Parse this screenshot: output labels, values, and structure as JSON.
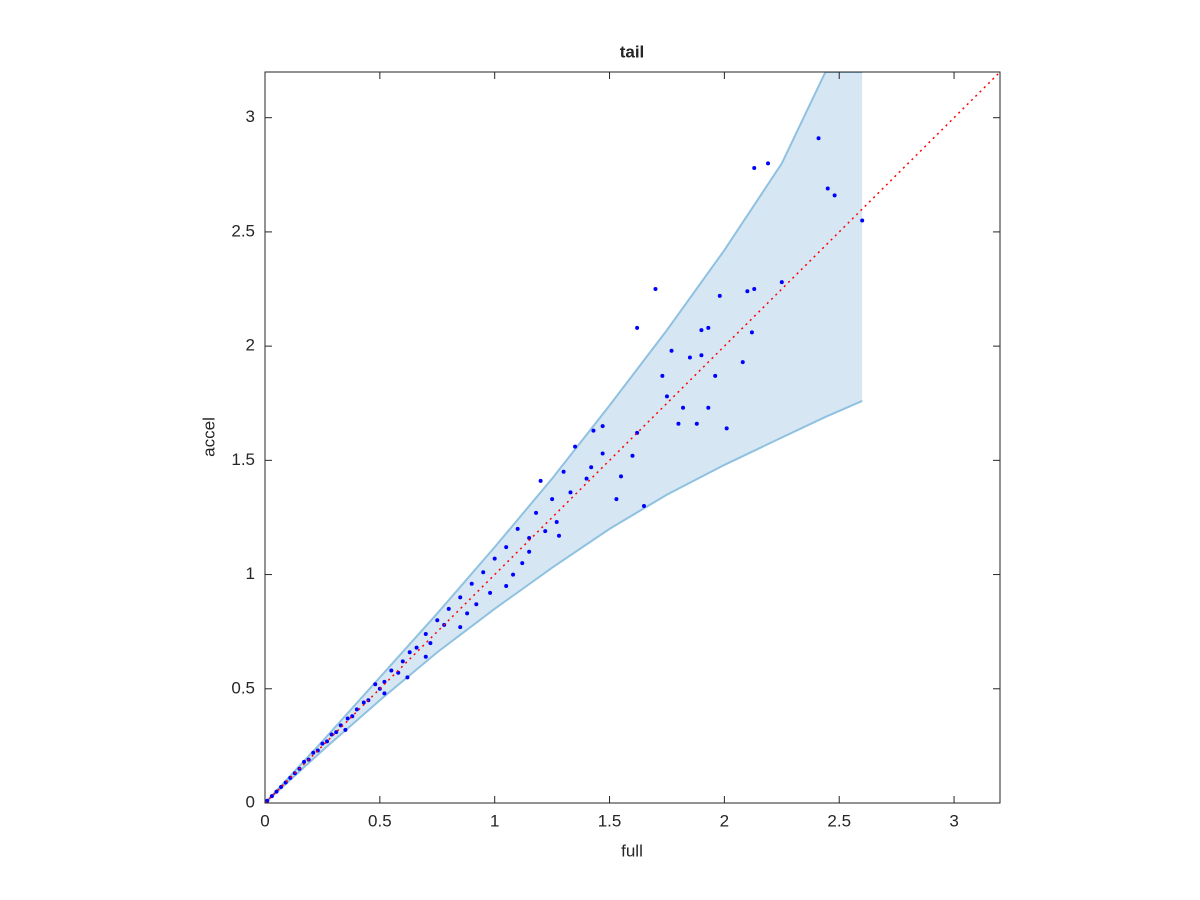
{
  "chart_data": {
    "type": "scatter",
    "title": "tail",
    "xlabel": "full",
    "ylabel": "accel",
    "xlim": [
      0,
      3.2
    ],
    "ylim": [
      0,
      3.2
    ],
    "xticks": [
      0,
      0.5,
      1,
      1.5,
      2,
      2.5,
      3
    ],
    "yticks": [
      0,
      0.5,
      1,
      1.5,
      2,
      2.5,
      3
    ],
    "grid": false,
    "color": "#0000ff",
    "x": [
      2.41,
      2.13,
      2.19,
      2.45,
      2.48,
      2.6,
      1.7,
      1.62,
      2.25,
      2.1,
      2.13,
      1.98,
      2.12,
      2.08,
      2.01,
      1.93,
      1.65,
      1.53,
      1.8,
      1.88,
      1.85,
      1.9,
      1.93,
      1.73,
      1.77,
      1.96,
      1.9,
      1.47,
      1.43,
      1.4,
      1.47,
      1.35,
      1.3,
      1.33,
      1.25,
      1.2,
      1.22,
      1.27,
      1.18,
      1.15,
      1.1,
      1.05,
      1.12,
      1.0,
      0.95,
      0.98,
      0.9,
      0.85,
      0.88,
      0.8,
      0.78,
      0.75,
      0.72,
      0.7,
      0.66,
      0.63,
      0.6,
      0.58,
      0.55,
      0.52,
      0.5,
      0.48,
      0.45,
      0.43,
      0.4,
      0.38,
      0.36,
      0.33,
      0.31,
      0.29,
      0.27,
      0.25,
      0.23,
      0.21,
      0.19,
      0.17,
      0.15,
      0.13,
      0.11,
      0.09,
      0.07,
      0.05,
      0.03,
      0.01,
      0.62,
      0.85,
      1.05,
      1.28,
      1.55,
      1.6,
      1.42,
      0.7,
      0.52,
      0.35,
      0.92,
      1.08,
      1.15,
      1.62,
      1.75,
      1.82
    ],
    "y": [
      2.91,
      2.78,
      2.8,
      2.69,
      2.66,
      2.55,
      2.25,
      2.08,
      2.28,
      2.24,
      2.25,
      2.22,
      2.06,
      1.93,
      1.64,
      1.73,
      1.3,
      1.33,
      1.66,
      1.66,
      1.95,
      2.07,
      2.08,
      1.87,
      1.98,
      1.87,
      1.96,
      1.65,
      1.63,
      1.42,
      1.53,
      1.56,
      1.45,
      1.36,
      1.33,
      1.41,
      1.19,
      1.23,
      1.27,
      1.16,
      1.2,
      1.12,
      1.05,
      1.07,
      1.01,
      0.92,
      0.96,
      0.9,
      0.83,
      0.85,
      0.78,
      0.8,
      0.7,
      0.74,
      0.68,
      0.66,
      0.62,
      0.57,
      0.58,
      0.53,
      0.5,
      0.52,
      0.45,
      0.44,
      0.41,
      0.38,
      0.37,
      0.34,
      0.31,
      0.3,
      0.27,
      0.26,
      0.23,
      0.22,
      0.19,
      0.18,
      0.15,
      0.13,
      0.11,
      0.09,
      0.07,
      0.05,
      0.03,
      0.01,
      0.55,
      0.77,
      0.95,
      1.17,
      1.43,
      1.52,
      1.47,
      0.64,
      0.48,
      0.32,
      0.87,
      1.0,
      1.1,
      1.62,
      1.78,
      1.73
    ],
    "band": {
      "x": [
        0,
        0.25,
        0.5,
        0.75,
        1,
        1.25,
        1.5,
        1.75,
        2,
        2.25,
        2.44,
        2.6
      ],
      "upper": [
        0,
        0.27,
        0.55,
        0.83,
        1.12,
        1.42,
        1.74,
        2.07,
        2.42,
        2.8,
        3.2,
        3.2
      ],
      "lower": [
        0,
        0.23,
        0.45,
        0.66,
        0.85,
        1.03,
        1.2,
        1.35,
        1.48,
        1.6,
        1.69,
        1.76
      ],
      "color": "#d6e7f3",
      "edge_color": "#8fc1e0"
    },
    "reference_line": {
      "x": [
        0,
        3.2
      ],
      "y": [
        0,
        3.2
      ],
      "color": "#ff0000",
      "style": "dotted"
    }
  }
}
